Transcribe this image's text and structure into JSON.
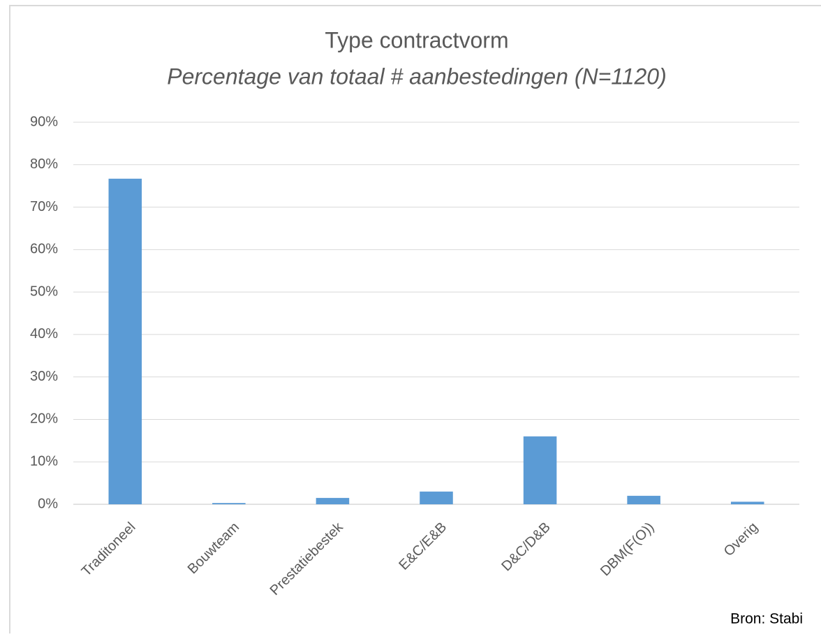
{
  "chart_data": {
    "type": "bar",
    "title": "Type contractvorm",
    "subtitle": "Percentage van totaal # aanbestedingen (N=1120)",
    "categories": [
      "Traditoneel",
      "Bouwteam",
      "Prestatiebestek",
      "E&C/E&B",
      "D&C/D&B",
      "DBM(F(O))",
      "Overig"
    ],
    "values": [
      76.7,
      0.3,
      1.5,
      3.0,
      16.0,
      2.0,
      0.6
    ],
    "color": "#5b9bd5",
    "ylim": [
      0,
      90
    ],
    "yticks": [
      {
        "value": 0,
        "label": "0%"
      },
      {
        "value": 10,
        "label": "10%"
      },
      {
        "value": 20,
        "label": "20%"
      },
      {
        "value": 30,
        "label": "30%"
      },
      {
        "value": 40,
        "label": "40%"
      },
      {
        "value": 50,
        "label": "50%"
      },
      {
        "value": 60,
        "label": "60%"
      },
      {
        "value": 70,
        "label": "70%"
      },
      {
        "value": 80,
        "label": "80%"
      },
      {
        "value": 90,
        "label": "90%"
      }
    ],
    "grid": true,
    "source": "Bron: Stabi"
  }
}
